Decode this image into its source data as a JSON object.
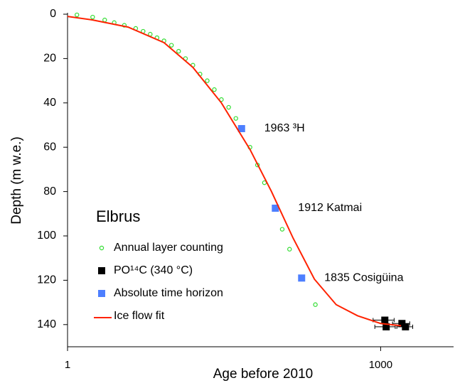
{
  "chart_data": {
    "type": "scatter",
    "x_label": "Age before 2010",
    "y_label": "Depth (m w.e.)",
    "legend_title": "Elbrus",
    "xlog": true,
    "yinverted": true,
    "xlim": [
      1,
      5000
    ],
    "xticks": [
      1,
      1000
    ],
    "ylim": [
      0,
      150
    ],
    "yticks": [
      0,
      20,
      40,
      60,
      80,
      100,
      120,
      140
    ],
    "series": [
      {
        "name": "Annual layer counting",
        "color": "#33dd33",
        "marker": "circle",
        "x": [
          1.23,
          1.74,
          2.27,
          2.8,
          3.5,
          4.5,
          5.3,
          6.2,
          7.2,
          8.4,
          9.9,
          11.6,
          13.5,
          15.9,
          18.6,
          21.8,
          25.5,
          29.8,
          35,
          41,
          46.5,
          56,
          66,
          77,
          98,
          114,
          134,
          175,
          237
        ],
        "values": [
          0.3,
          1.3,
          2.6,
          3.8,
          5,
          6.4,
          7.7,
          9,
          10.6,
          12,
          14,
          16.7,
          20,
          23,
          27,
          30,
          34,
          38.5,
          42,
          47,
          51.6,
          60,
          68,
          76,
          87.5,
          97,
          106,
          119,
          131
        ]
      },
      {
        "name": "PO¹⁴C   (340 °C)",
        "color": "#000000",
        "marker": "square",
        "x": [
          1097,
          1130,
          1600,
          1730
        ],
        "values": [
          138,
          141,
          139.5,
          141
        ],
        "xerr": [
          250,
          250,
          300,
          300
        ]
      },
      {
        "name": "Absolute time horizon",
        "color": "#4d7fff",
        "marker": "square",
        "x": [
          46.5,
          98,
          175
        ],
        "values": [
          51.6,
          87.5,
          119
        ],
        "point_labels": [
          "1963 ³H",
          "1912 Katmai",
          "1835 Cosigüina"
        ]
      },
      {
        "name": "Ice flow fit",
        "color": "#ff2200",
        "marker": "line",
        "x": [
          1,
          1.74,
          3.8,
          8.4,
          15.9,
          29.8,
          56,
          90,
          145,
          232,
          375,
          600,
          1000,
          1570
        ],
        "values": [
          1,
          2.6,
          5.8,
          12.8,
          24,
          40,
          61,
          80,
          101,
          119.5,
          131,
          136,
          139.5,
          140.5
        ]
      }
    ]
  }
}
